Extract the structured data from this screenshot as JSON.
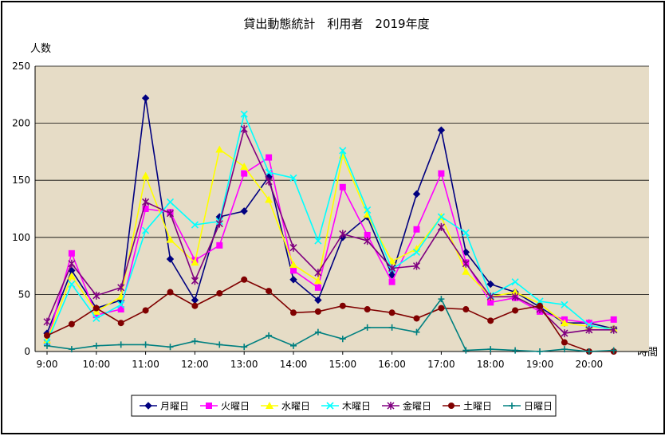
{
  "chart_data": {
    "type": "line",
    "title": "貸出動態統計　利用者　2019年度",
    "ylabel": "人数",
    "xlabel": "時間",
    "ylim": [
      0,
      250
    ],
    "yticks": [
      0,
      50,
      100,
      150,
      200,
      250
    ],
    "x": [
      9,
      9.5,
      10,
      10.5,
      11,
      11.5,
      12,
      12.5,
      13,
      13.5,
      14,
      14.5,
      15,
      15.5,
      16,
      16.5,
      17,
      17.5,
      18,
      18.5,
      19,
      19.5,
      20,
      20.5
    ],
    "xtick_labels": [
      "9:00",
      "10:00",
      "11:00",
      "12:00",
      "13:00",
      "14:00",
      "15:00",
      "16:00",
      "17:00",
      "18:00",
      "19:00",
      "20:00"
    ],
    "grid": "horizontal",
    "legend_position": "bottom",
    "plot_background": "#e6dcc6",
    "series": [
      {
        "name": "月曜日",
        "color": "#000080",
        "marker": "diamond",
        "values": [
          16,
          71,
          38,
          45,
          222,
          81,
          45,
          118,
          123,
          153,
          63,
          45,
          100,
          118,
          67,
          138,
          194,
          87,
          59,
          52,
          39,
          25,
          25,
          20
        ]
      },
      {
        "name": "火曜日",
        "color": "#ff00ff",
        "marker": "square",
        "values": [
          8,
          86,
          32,
          37,
          125,
          122,
          80,
          93,
          156,
          170,
          71,
          56,
          144,
          102,
          61,
          107,
          156,
          78,
          43,
          47,
          35,
          28,
          25,
          28
        ]
      },
      {
        "name": "水曜日",
        "color": "#ffff00",
        "marker": "triangle",
        "values": [
          10,
          66,
          35,
          48,
          154,
          98,
          78,
          177,
          162,
          133,
          76,
          62,
          172,
          120,
          79,
          90,
          118,
          70,
          48,
          52,
          42,
          25,
          22,
          20
        ]
      },
      {
        "name": "木曜日",
        "color": "#00ffff",
        "marker": "x",
        "values": [
          8,
          59,
          29,
          41,
          106,
          131,
          111,
          114,
          208,
          157,
          152,
          97,
          176,
          124,
          72,
          87,
          118,
          104,
          49,
          61,
          44,
          41,
          23,
          19
        ]
      },
      {
        "name": "金曜日",
        "color": "#800080",
        "marker": "star",
        "values": [
          26,
          77,
          49,
          56,
          131,
          121,
          62,
          112,
          195,
          149,
          91,
          69,
          103,
          97,
          73,
          75,
          109,
          77,
          48,
          48,
          37,
          16,
          19,
          19
        ]
      },
      {
        "name": "土曜日",
        "color": "#800000",
        "marker": "circle",
        "values": [
          14,
          24,
          38,
          25,
          36,
          52,
          40,
          51,
          63,
          53,
          34,
          35,
          40,
          37,
          34,
          29,
          38,
          37,
          27,
          36,
          40,
          8,
          0,
          0
        ]
      },
      {
        "name": "日曜日",
        "color": "#008080",
        "marker": "plus",
        "values": [
          5,
          2,
          5,
          6,
          6,
          4,
          9,
          6,
          4,
          14,
          5,
          17,
          11,
          21,
          21,
          17,
          46,
          1,
          2,
          1,
          0,
          2,
          0,
          1
        ]
      }
    ]
  }
}
